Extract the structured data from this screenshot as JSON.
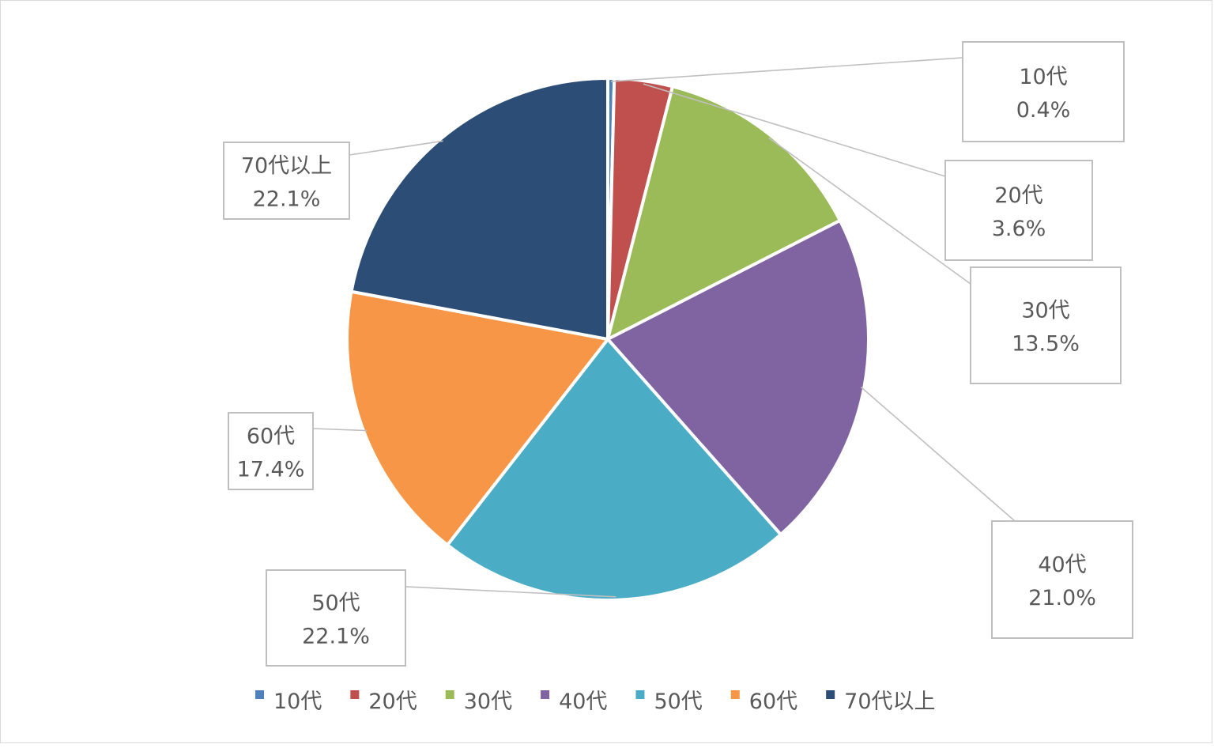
{
  "chart_data": {
    "type": "pie",
    "categories": [
      "10代",
      "20代",
      "30代",
      "40代",
      "50代",
      "60代",
      "70代以上"
    ],
    "values": [
      0.4,
      3.6,
      13.5,
      21.0,
      22.1,
      17.4,
      22.1
    ],
    "value_labels": [
      "0.4%",
      "3.6%",
      "13.5%",
      "21.0%",
      "22.1%",
      "17.4%",
      "22.1%"
    ],
    "colors": [
      "#4f81bd",
      "#c0504d",
      "#9bbb59",
      "#8064a2",
      "#4bacc6",
      "#f79646",
      "#2c4d75"
    ],
    "legend_position": "bottom",
    "start_angle": "12 o'clock",
    "direction": "clockwise"
  }
}
